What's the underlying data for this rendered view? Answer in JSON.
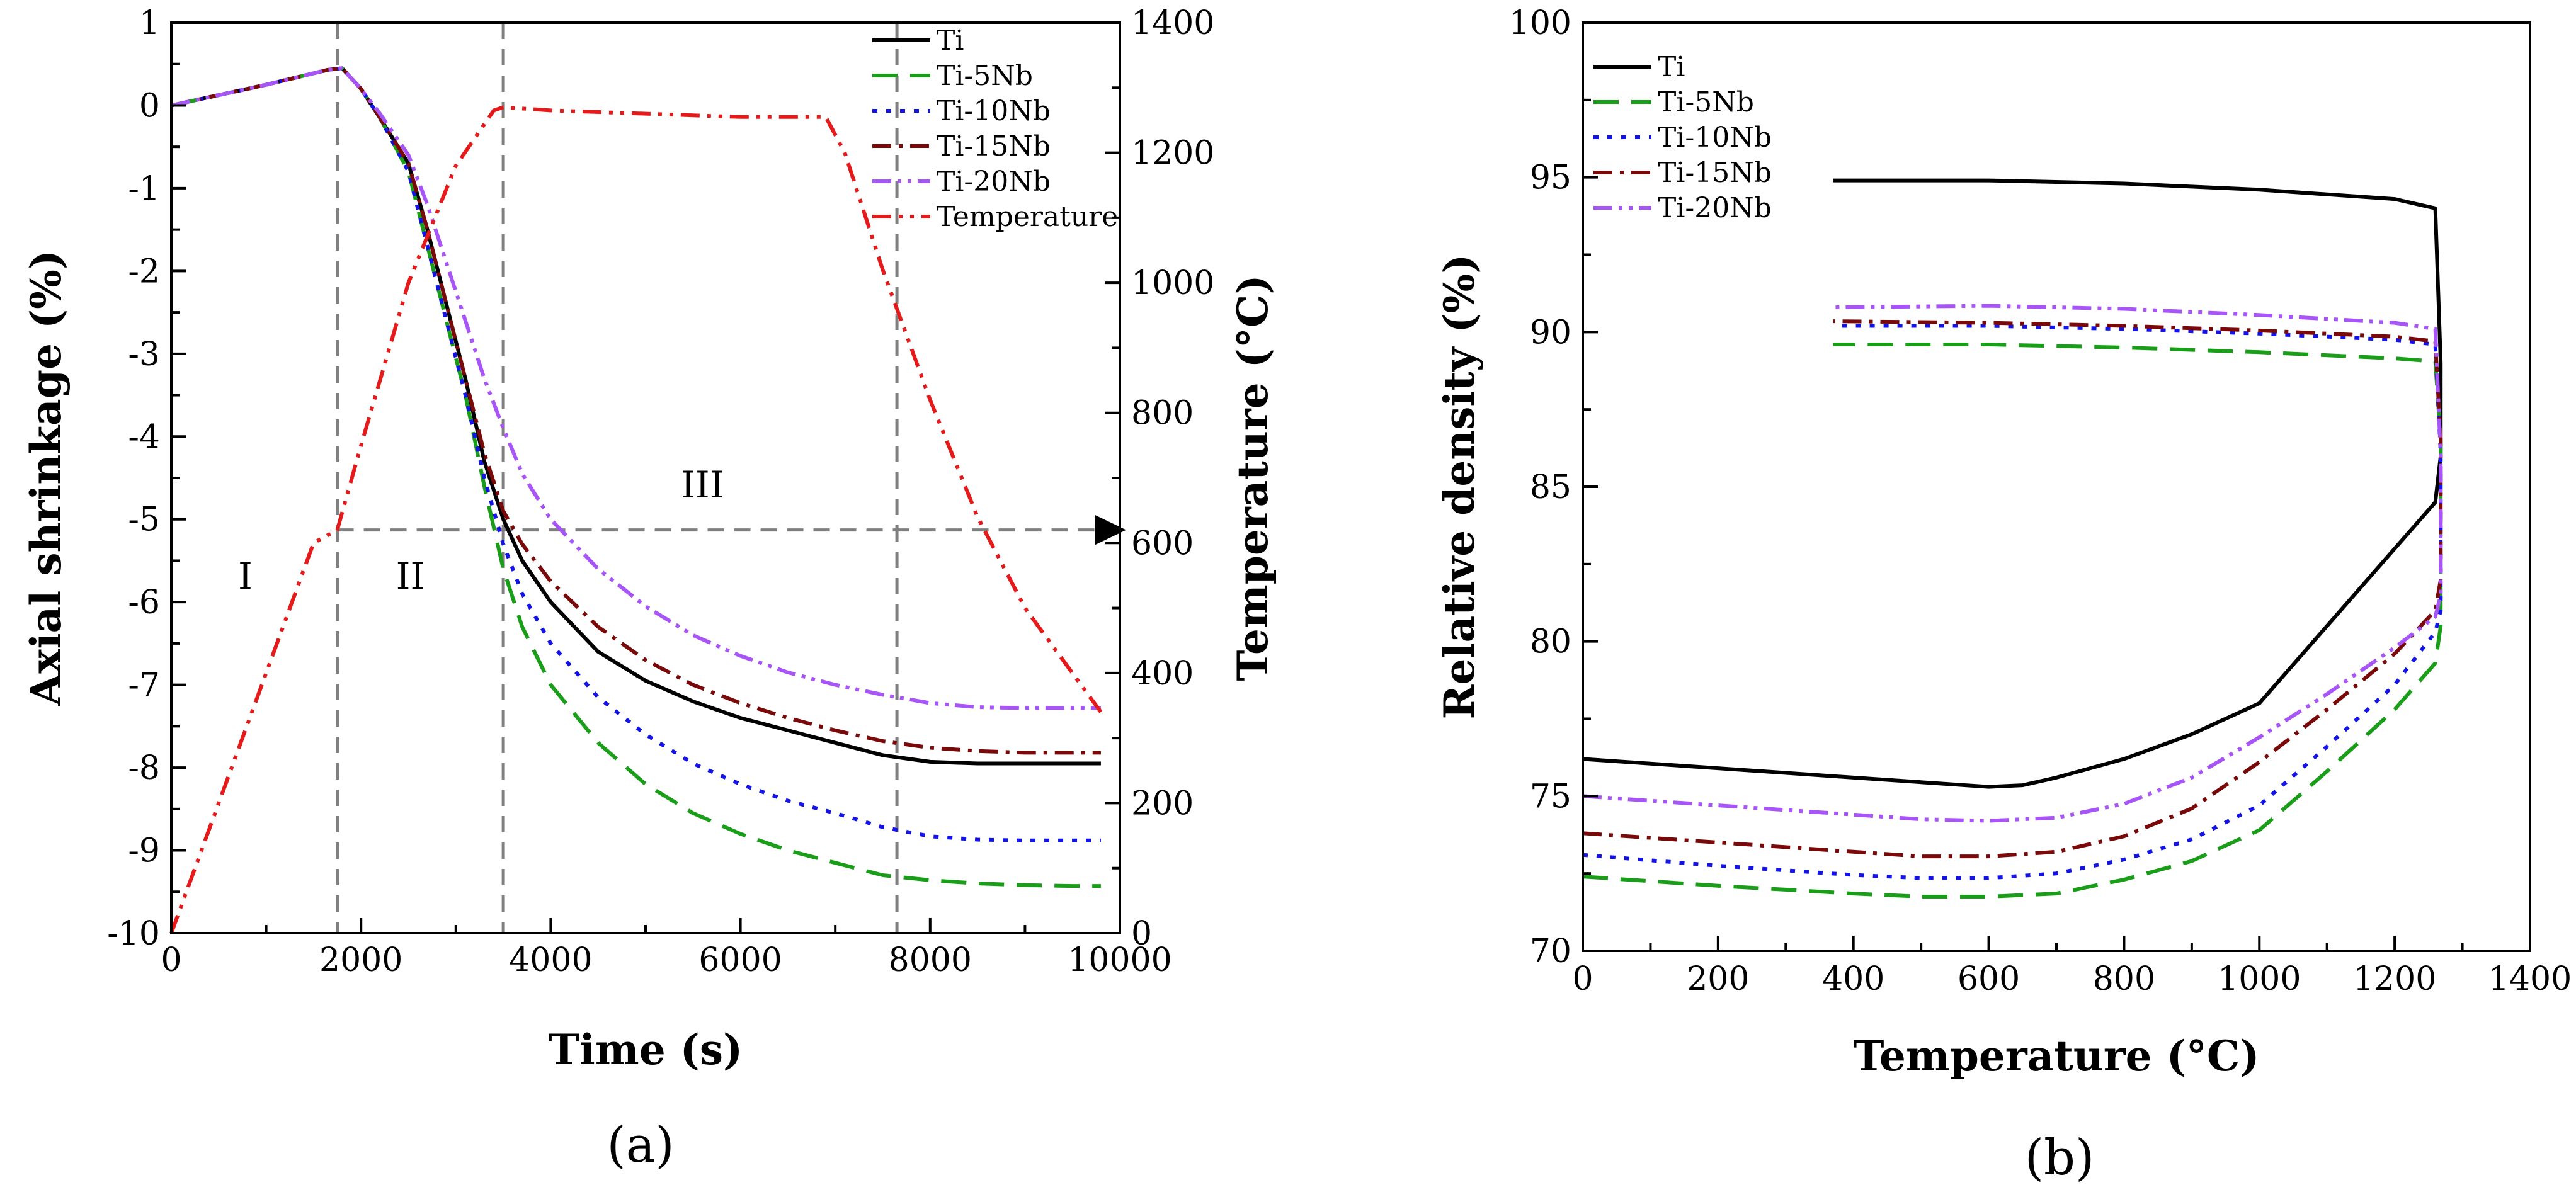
{
  "chart_data": [
    {
      "panel": "(a)",
      "type": "line",
      "xlabel": "Time (s)",
      "ylabel": "Axial shrinkage (%)",
      "y2label": "Temperature (°C)",
      "xlim": [
        0,
        10000
      ],
      "ylim": [
        -10,
        1
      ],
      "y2lim": [
        0,
        1400
      ],
      "xticks": [
        0,
        2000,
        4000,
        6000,
        8000,
        10000
      ],
      "yticks": [
        1,
        0,
        -1,
        -2,
        -3,
        -4,
        -5,
        -6,
        -7,
        -8,
        -9,
        -10
      ],
      "y2ticks": [
        1400,
        1200,
        1000,
        800,
        600,
        400,
        200,
        0
      ],
      "legend_position": "top-right",
      "series": [
        {
          "name": "Ti",
          "color": "#000000",
          "dash": "solid",
          "axis": "left",
          "x": [
            0,
            1000,
            1650,
            1800,
            2000,
            2200,
            2500,
            2700,
            2900,
            3100,
            3300,
            3500,
            3700,
            4000,
            4500,
            5000,
            5500,
            6000,
            6500,
            7000,
            7500,
            8000,
            8500,
            9000,
            9500,
            9800
          ],
          "y": [
            0,
            0.25,
            0.43,
            0.45,
            0.2,
            -0.15,
            -0.7,
            -1.5,
            -2.4,
            -3.3,
            -4.3,
            -5.0,
            -5.5,
            -6.0,
            -6.6,
            -6.95,
            -7.2,
            -7.4,
            -7.55,
            -7.7,
            -7.85,
            -7.93,
            -7.95,
            -7.95,
            -7.95,
            -7.95
          ]
        },
        {
          "name": "Ti-5Nb",
          "color": "#1a9e1a",
          "dash": "40,20",
          "axis": "left",
          "x": [
            0,
            1000,
            1650,
            1800,
            2000,
            2200,
            2500,
            2700,
            2900,
            3100,
            3300,
            3500,
            3700,
            4000,
            4500,
            5000,
            5500,
            6000,
            6500,
            7000,
            7500,
            8000,
            8500,
            9000,
            9500,
            9800
          ],
          "y": [
            0,
            0.25,
            0.43,
            0.45,
            0.2,
            -0.15,
            -0.8,
            -1.7,
            -2.6,
            -3.5,
            -4.6,
            -5.6,
            -6.3,
            -7.0,
            -7.7,
            -8.2,
            -8.55,
            -8.8,
            -9.0,
            -9.15,
            -9.3,
            -9.36,
            -9.4,
            -9.42,
            -9.43,
            -9.43
          ]
        },
        {
          "name": "Ti-10Nb",
          "color": "#1414e6",
          "dash": "8,14",
          "axis": "left",
          "x": [
            0,
            1000,
            1650,
            1800,
            2000,
            2200,
            2500,
            2700,
            2900,
            3100,
            3300,
            3500,
            3700,
            4000,
            4500,
            5000,
            5500,
            6000,
            6500,
            7000,
            7500,
            8000,
            8500,
            9000,
            9500,
            9800
          ],
          "y": [
            0,
            0.25,
            0.43,
            0.45,
            0.2,
            -0.15,
            -0.8,
            -1.7,
            -2.6,
            -3.5,
            -4.5,
            -5.3,
            -5.9,
            -6.5,
            -7.15,
            -7.6,
            -7.95,
            -8.2,
            -8.4,
            -8.55,
            -8.72,
            -8.83,
            -8.87,
            -8.88,
            -8.88,
            -8.88
          ]
        },
        {
          "name": "Ti-15Nb",
          "color": "#7a0a0a",
          "dash": "30,12,6,12",
          "axis": "left",
          "x": [
            0,
            1000,
            1650,
            1800,
            2000,
            2200,
            2500,
            2700,
            2900,
            3100,
            3300,
            3500,
            3700,
            4000,
            4500,
            5000,
            5500,
            6000,
            6500,
            7000,
            7500,
            8000,
            8500,
            9000,
            9500,
            9800
          ],
          "y": [
            0,
            0.25,
            0.43,
            0.45,
            0.2,
            -0.15,
            -0.7,
            -1.5,
            -2.4,
            -3.3,
            -4.2,
            -4.9,
            -5.3,
            -5.75,
            -6.3,
            -6.7,
            -7.0,
            -7.22,
            -7.4,
            -7.55,
            -7.68,
            -7.76,
            -7.8,
            -7.82,
            -7.82,
            -7.82
          ]
        },
        {
          "name": "Ti-20Nb",
          "color": "#a855f7",
          "dash": "30,10,6,10,6,10",
          "axis": "left",
          "x": [
            0,
            1000,
            1650,
            1800,
            2000,
            2200,
            2500,
            2700,
            2900,
            3100,
            3300,
            3500,
            3700,
            4000,
            4500,
            5000,
            5500,
            6000,
            6500,
            7000,
            7500,
            8000,
            8500,
            9000,
            9500,
            9800
          ],
          "y": [
            0,
            0.25,
            0.43,
            0.45,
            0.2,
            -0.1,
            -0.6,
            -1.2,
            -1.9,
            -2.6,
            -3.3,
            -3.9,
            -4.45,
            -5.0,
            -5.6,
            -6.05,
            -6.4,
            -6.65,
            -6.85,
            -7.0,
            -7.12,
            -7.22,
            -7.27,
            -7.28,
            -7.28,
            -7.28
          ]
        },
        {
          "name": "Temperature",
          "color": "#e51a1a",
          "dash": "30,12,6,12,6,12",
          "axis": "right",
          "x": [
            0,
            500,
            1000,
            1500,
            1750,
            2000,
            2500,
            3000,
            3400,
            3500,
            4000,
            5000,
            6000,
            6900,
            7100,
            7500,
            8000,
            8500,
            9000,
            9500,
            9800
          ],
          "y": [
            0,
            200,
            400,
            600,
            620,
            750,
            1000,
            1180,
            1265,
            1270,
            1265,
            1260,
            1255,
            1255,
            1200,
            1020,
            820,
            640,
            500,
            400,
            340
          ]
        }
      ],
      "annotations": [
        "I",
        "II",
        "III"
      ],
      "reference_lines": {
        "vertical_x": [
          1750,
          3500,
          7650
        ],
        "horizontal_y_temperature": 620
      }
    },
    {
      "panel": "(b)",
      "type": "line",
      "xlabel": "Temperature (°C)",
      "ylabel": "Relative density (%)",
      "xlim": [
        0,
        1400
      ],
      "ylim": [
        70,
        100
      ],
      "xticks": [
        0,
        200,
        400,
        600,
        800,
        1000,
        1200,
        1400
      ],
      "yticks": [
        100,
        95,
        90,
        85,
        80,
        75,
        70
      ],
      "legend_position": "top-left",
      "series": [
        {
          "name": "Ti",
          "color": "#000000",
          "dash": "solid",
          "x": [
            0,
            200,
            400,
            600,
            650,
            700,
            750,
            800,
            900,
            1000,
            1100,
            1200,
            1260,
            1268,
            1268,
            1260,
            1200,
            1000,
            800,
            600,
            370
          ],
          "y": [
            76.2,
            75.9,
            75.6,
            75.3,
            75.35,
            75.6,
            75.9,
            76.2,
            77.0,
            78.0,
            80.5,
            83.0,
            84.5,
            86.0,
            89.0,
            94.0,
            94.3,
            94.6,
            94.8,
            94.9,
            94.9
          ]
        },
        {
          "name": "Ti-5Nb",
          "color": "#1a9e1a",
          "dash": "40,20",
          "x": [
            0,
            200,
            400,
            500,
            600,
            700,
            800,
            900,
            1000,
            1100,
            1200,
            1260,
            1268,
            1268,
            1260,
            1200,
            1000,
            800,
            600,
            370
          ],
          "y": [
            72.4,
            72.1,
            71.85,
            71.75,
            71.75,
            71.85,
            72.3,
            72.9,
            73.9,
            75.8,
            77.8,
            79.3,
            80.5,
            86.5,
            89.05,
            89.15,
            89.35,
            89.5,
            89.6,
            89.6
          ]
        },
        {
          "name": "Ti-10Nb",
          "color": "#1414e6",
          "dash": "8,14",
          "x": [
            0,
            200,
            400,
            500,
            600,
            700,
            800,
            900,
            1000,
            1100,
            1200,
            1260,
            1268,
            1268,
            1260,
            1200,
            1000,
            800,
            600,
            370
          ],
          "y": [
            73.1,
            72.75,
            72.45,
            72.35,
            72.35,
            72.5,
            72.95,
            73.6,
            74.7,
            76.6,
            78.6,
            80.3,
            81.0,
            86.0,
            89.6,
            89.75,
            89.95,
            90.1,
            90.2,
            90.2
          ]
        },
        {
          "name": "Ti-15Nb",
          "color": "#7a0a0a",
          "dash": "30,12,6,12",
          "x": [
            0,
            200,
            400,
            500,
            600,
            700,
            800,
            900,
            1000,
            1100,
            1200,
            1260,
            1268,
            1268,
            1260,
            1200,
            1000,
            800,
            600,
            370
          ],
          "y": [
            73.8,
            73.5,
            73.2,
            73.05,
            73.05,
            73.2,
            73.7,
            74.6,
            76.1,
            77.8,
            79.6,
            81.0,
            82.0,
            86.5,
            89.7,
            89.85,
            90.05,
            90.2,
            90.3,
            90.35
          ]
        },
        {
          "name": "Ti-20Nb",
          "color": "#a855f7",
          "dash": "30,10,6,10,6,10",
          "x": [
            0,
            200,
            400,
            500,
            600,
            700,
            800,
            900,
            1000,
            1100,
            1200,
            1260,
            1268,
            1268,
            1260,
            1200,
            1000,
            800,
            600,
            370
          ],
          "y": [
            75.0,
            74.7,
            74.4,
            74.25,
            74.2,
            74.3,
            74.75,
            75.6,
            76.9,
            78.3,
            79.8,
            80.8,
            81.5,
            86.0,
            90.1,
            90.3,
            90.55,
            90.75,
            90.85,
            90.8
          ]
        }
      ]
    }
  ]
}
